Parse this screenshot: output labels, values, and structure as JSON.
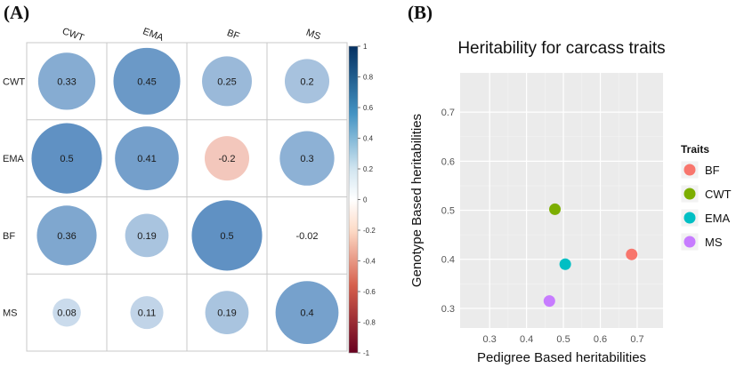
{
  "panels": {
    "a_label": "(A)",
    "b_label": "(B)"
  },
  "chart_data": [
    {
      "type": "heatmap",
      "subtype": "correlation-circles",
      "row_labels": [
        "CWT",
        "EMA",
        "BF",
        "MS"
      ],
      "col_labels": [
        "CWT",
        "EMA",
        "BF",
        "MS"
      ],
      "values": [
        [
          0.33,
          0.45,
          0.25,
          0.2
        ],
        [
          0.5,
          0.41,
          -0.2,
          0.3
        ],
        [
          0.36,
          0.19,
          0.5,
          -0.02
        ],
        [
          0.08,
          0.11,
          0.19,
          0.4
        ]
      ],
      "value_labels": [
        [
          "0.33",
          "0.45",
          "0.25",
          "0.2"
        ],
        [
          "0.5",
          "0.41",
          "-0.2",
          "0.3"
        ],
        [
          "0.36",
          "0.19",
          "0.5",
          "-0.02"
        ],
        [
          "0.08",
          "0.11",
          "0.19",
          "0.4"
        ]
      ],
      "colorbar": {
        "range": [
          -1,
          1
        ],
        "ticks": [
          1,
          0.8,
          0.6,
          0.4,
          0.2,
          0,
          -0.2,
          -0.4,
          -0.6,
          -0.8,
          -1
        ],
        "tick_labels": [
          "1",
          "0.8",
          "0.6",
          "0.4",
          "0.2",
          "0",
          "-0.2",
          "-0.4",
          "-0.6",
          "-0.8",
          "-1"
        ],
        "colors": {
          "negative": "#67001f",
          "mid": "#ffffff",
          "positive": "#053061"
        }
      },
      "grid": true
    },
    {
      "type": "scatter",
      "title": "Heritability for carcass traits",
      "xlabel": "Pedigree Based heritabilities",
      "ylabel": "Genotype Based heritabilities",
      "xlim": [
        0.22,
        0.77
      ],
      "ylim": [
        0.26,
        0.78
      ],
      "xticks": [
        0.3,
        0.4,
        0.5,
        0.6,
        0.7
      ],
      "xtick_labels": [
        "0.3",
        "0.4",
        "0.5",
        "0.6",
        "0.7"
      ],
      "yticks": [
        0.3,
        0.4,
        0.5,
        0.6,
        0.7
      ],
      "ytick_labels": [
        "0.3",
        "0.4",
        "0.5",
        "0.6",
        "0.7"
      ],
      "legend": {
        "title": "Traits",
        "position": "right"
      },
      "grid": true,
      "background": "#ebebeb",
      "series": [
        {
          "name": "BF",
          "color": "#f8766d",
          "x": [
            0.685
          ],
          "y": [
            0.41
          ]
        },
        {
          "name": "CWT",
          "color": "#7cae00",
          "x": [
            0.477
          ],
          "y": [
            0.502
          ]
        },
        {
          "name": "EMA",
          "color": "#00bfc4",
          "x": [
            0.505
          ],
          "y": [
            0.39
          ]
        },
        {
          "name": "MS",
          "color": "#c77cff",
          "x": [
            0.462
          ],
          "y": [
            0.315
          ]
        }
      ]
    }
  ]
}
